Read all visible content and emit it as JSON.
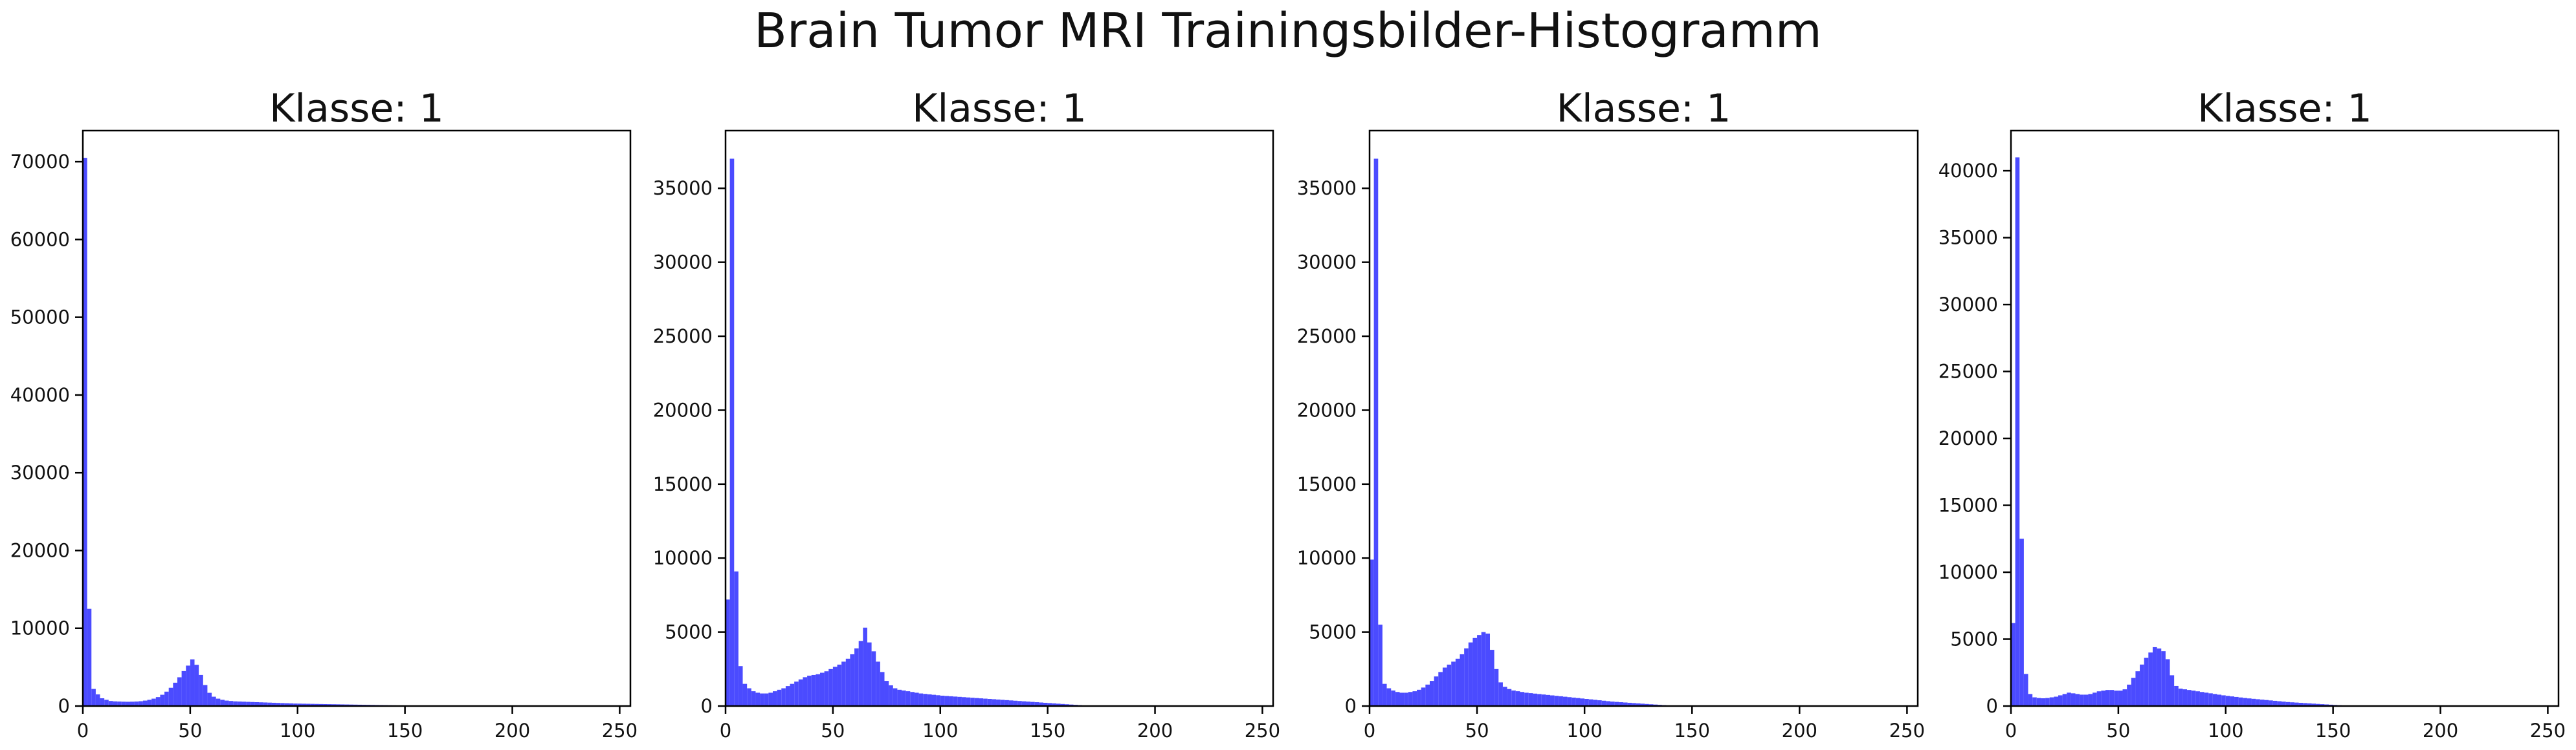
{
  "figure": {
    "title": "Brain Tumor MRI Trainingsbilder-Histogramm",
    "bar_color": "#4b4bff"
  },
  "chart_data": [
    {
      "type": "bar",
      "title": "Klasse: 1",
      "xlim": [
        0,
        255
      ],
      "ylim": [
        0,
        74000
      ],
      "xticks": [
        0,
        50,
        100,
        150,
        200,
        250
      ],
      "yticks": [
        0,
        10000,
        20000,
        30000,
        40000,
        50000,
        60000,
        70000
      ],
      "bin_width": 2,
      "values": [
        70500,
        12500,
        2200,
        1500,
        1000,
        800,
        650,
        600,
        580,
        560,
        550,
        560,
        580,
        620,
        700,
        800,
        950,
        1150,
        1450,
        1850,
        2350,
        3000,
        3700,
        4500,
        5200,
        6000,
        5300,
        4000,
        2700,
        1700,
        1200,
        950,
        800,
        700,
        650,
        600,
        580,
        560,
        540,
        520,
        500,
        480,
        460,
        440,
        420,
        400,
        380,
        360,
        340,
        320,
        310,
        300,
        290,
        280,
        270,
        260,
        250,
        240,
        230,
        220,
        210,
        200,
        190,
        180,
        170,
        160,
        150,
        140,
        130,
        120,
        110,
        100,
        90,
        80,
        70,
        60,
        50,
        40,
        30,
        20,
        15,
        10,
        8,
        6,
        5,
        4,
        3,
        2,
        2,
        1,
        1,
        1,
        0,
        0,
        0,
        0,
        0,
        0,
        0,
        0,
        0,
        0,
        0,
        0,
        0,
        0,
        0,
        0,
        0,
        0,
        0,
        0,
        0,
        0,
        0,
        0,
        0,
        0,
        0,
        0,
        0,
        0,
        0,
        0,
        0,
        0,
        0,
        0
      ]
    },
    {
      "type": "bar",
      "title": "Klasse: 1",
      "xlim": [
        0,
        255
      ],
      "ylim": [
        0,
        38900
      ],
      "xticks": [
        0,
        50,
        100,
        150,
        200,
        250
      ],
      "yticks": [
        0,
        5000,
        10000,
        15000,
        20000,
        25000,
        30000,
        35000
      ],
      "bin_width": 2,
      "values": [
        7200,
        37000,
        9100,
        2700,
        1500,
        1200,
        1000,
        900,
        850,
        850,
        900,
        1000,
        1100,
        1200,
        1350,
        1500,
        1650,
        1800,
        1950,
        2050,
        2100,
        2150,
        2250,
        2350,
        2500,
        2650,
        2800,
        3000,
        3200,
        3500,
        3900,
        4400,
        5300,
        4300,
        3700,
        3000,
        2300,
        1700,
        1400,
        1200,
        1100,
        1050,
        1000,
        950,
        900,
        850,
        820,
        790,
        760,
        730,
        700,
        680,
        660,
        640,
        620,
        600,
        580,
        560,
        540,
        520,
        500,
        480,
        460,
        440,
        420,
        400,
        380,
        360,
        340,
        320,
        300,
        280,
        260,
        240,
        220,
        200,
        180,
        160,
        140,
        120,
        100,
        80,
        60,
        40,
        30,
        20,
        10,
        5,
        3,
        2,
        1,
        0,
        0,
        0,
        0,
        0,
        0,
        0,
        0,
        0,
        0,
        0,
        0,
        0,
        0,
        0,
        0,
        0,
        0,
        0,
        0,
        0,
        0,
        0,
        0,
        0,
        0,
        0,
        0,
        0,
        0,
        0,
        0,
        0,
        0,
        0
      ]
    },
    {
      "type": "bar",
      "title": "Klasse: 1",
      "xlim": [
        0,
        255
      ],
      "ylim": [
        0,
        38900
      ],
      "xticks": [
        0,
        50,
        100,
        150,
        200,
        250
      ],
      "yticks": [
        0,
        5000,
        10000,
        15000,
        20000,
        25000,
        30000,
        35000
      ],
      "bin_width": 2,
      "values": [
        9900,
        37000,
        5500,
        1500,
        1200,
        1050,
        950,
        900,
        900,
        950,
        1000,
        1100,
        1250,
        1450,
        1700,
        2000,
        2300,
        2600,
        2800,
        3000,
        3200,
        3500,
        3900,
        4300,
        4600,
        4800,
        5000,
        4900,
        3800,
        2500,
        1600,
        1300,
        1150,
        1050,
        1000,
        950,
        900,
        870,
        840,
        810,
        780,
        750,
        720,
        690,
        660,
        630,
        600,
        570,
        540,
        510,
        480,
        450,
        420,
        390,
        360,
        330,
        300,
        280,
        260,
        240,
        220,
        200,
        180,
        160,
        140,
        120,
        100,
        80,
        60,
        40,
        30,
        20,
        10,
        5,
        3,
        2,
        1,
        0,
        0,
        0,
        0,
        0,
        0,
        0,
        0,
        0,
        0,
        0,
        0,
        0,
        0,
        0,
        0,
        0,
        0,
        0,
        0,
        0,
        0,
        0,
        0,
        0,
        0,
        0,
        0,
        0,
        0,
        0,
        0,
        0,
        0,
        0,
        0,
        0,
        0,
        0,
        0,
        0,
        0,
        0,
        0,
        0,
        0,
        0,
        0,
        0,
        0,
        0
      ]
    },
    {
      "type": "bar",
      "title": "Klasse: 1",
      "xlim": [
        0,
        255
      ],
      "ylim": [
        0,
        43000
      ],
      "xticks": [
        0,
        50,
        100,
        150,
        200,
        250
      ],
      "yticks": [
        0,
        5000,
        10000,
        15000,
        20000,
        25000,
        30000,
        35000,
        40000
      ],
      "bin_width": 2,
      "values": [
        6200,
        41000,
        12500,
        2400,
        900,
        650,
        600,
        580,
        600,
        650,
        700,
        800,
        900,
        1000,
        950,
        900,
        850,
        850,
        900,
        1000,
        1100,
        1150,
        1200,
        1200,
        1150,
        1150,
        1250,
        1600,
        2100,
        2600,
        3100,
        3600,
        4000,
        4400,
        4300,
        4100,
        3500,
        2300,
        1500,
        1300,
        1250,
        1200,
        1150,
        1100,
        1050,
        1000,
        950,
        900,
        850,
        800,
        760,
        720,
        680,
        640,
        600,
        570,
        540,
        510,
        480,
        450,
        420,
        390,
        360,
        330,
        300,
        280,
        260,
        240,
        220,
        200,
        180,
        160,
        140,
        120,
        100,
        80,
        60,
        40,
        20,
        10,
        5,
        2,
        1,
        0,
        0,
        0,
        0,
        0,
        0,
        0,
        0,
        0,
        0,
        0,
        0,
        0,
        0,
        0,
        0,
        0,
        0,
        0,
        0,
        0,
        0,
        0,
        0,
        0,
        0,
        0,
        0,
        0,
        0,
        0,
        0,
        0,
        0,
        0,
        0,
        0,
        0,
        0,
        0,
        0,
        0,
        0,
        0,
        0,
        0,
        0
      ]
    }
  ]
}
